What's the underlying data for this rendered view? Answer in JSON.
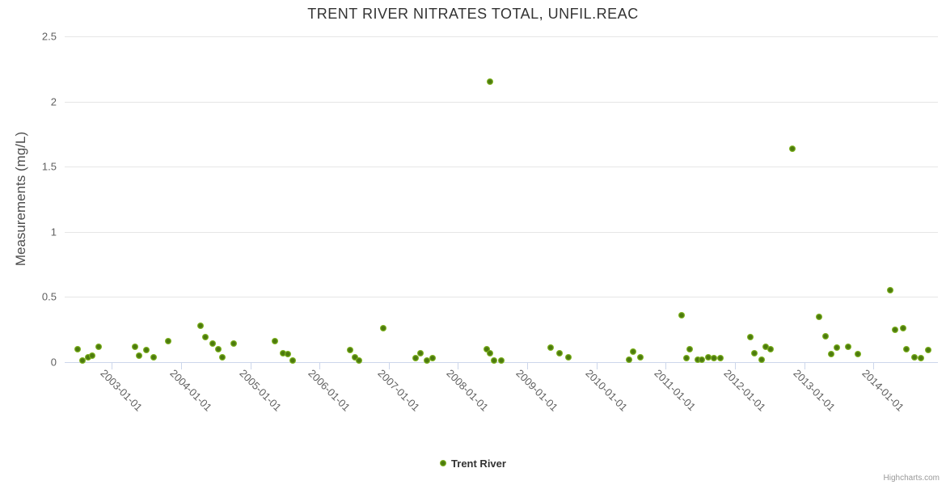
{
  "title": "TRENT RIVER NITRATES TOTAL, UNFIL.REAC",
  "legend": {
    "label": "Trent River",
    "marker_icon": "circle-marker-icon",
    "color": "#8bc42a"
  },
  "credits_label": "Highcharts.com",
  "colors": {
    "point_fill": "#8bc42a",
    "point_core": "#4c7a0e",
    "grid": "#e6e6e6",
    "axis_line": "#ccd6eb",
    "label_text": "#606060",
    "title_text": "#333333"
  },
  "chart_data": {
    "type": "scatter",
    "title": "TRENT RIVER NITRATES TOTAL, UNFIL.REAC",
    "xlabel": "",
    "ylabel": "Measurements (mg/L)",
    "ylim": [
      0,
      2.5
    ],
    "yticks": [
      0,
      0.5,
      1,
      1.5,
      2,
      2.5
    ],
    "xlim": [
      2002.32,
      2014.93
    ],
    "grid": true,
    "legend_position": "bottom-center",
    "xticks": [
      {
        "t": 2003,
        "label": "2003-01-01"
      },
      {
        "t": 2004,
        "label": "2004-01-01"
      },
      {
        "t": 2005,
        "label": "2005-01-01"
      },
      {
        "t": 2006,
        "label": "2006-01-01"
      },
      {
        "t": 2007,
        "label": "2007-01-01"
      },
      {
        "t": 2008,
        "label": "2008-01-01"
      },
      {
        "t": 2009,
        "label": "2009-01-01"
      },
      {
        "t": 2010,
        "label": "2010-01-01"
      },
      {
        "t": 2011,
        "label": "2011-01-01"
      },
      {
        "t": 2012,
        "label": "2012-01-01"
      },
      {
        "t": 2013,
        "label": "2013-01-01"
      },
      {
        "t": 2014,
        "label": "2014-01-01"
      }
    ],
    "series": [
      {
        "name": "Trent River",
        "color": "#8bc42a",
        "points": [
          [
            2002.51,
            0.1
          ],
          [
            2002.58,
            0.01
          ],
          [
            2002.66,
            0.04
          ],
          [
            2002.72,
            0.05
          ],
          [
            2002.81,
            0.12
          ],
          [
            2003.34,
            0.12
          ],
          [
            2003.4,
            0.05
          ],
          [
            2003.5,
            0.09
          ],
          [
            2003.61,
            0.04
          ],
          [
            2003.82,
            0.16
          ],
          [
            2004.28,
            0.28
          ],
          [
            2004.35,
            0.19
          ],
          [
            2004.46,
            0.14
          ],
          [
            2004.54,
            0.1
          ],
          [
            2004.6,
            0.04
          ],
          [
            2004.76,
            0.14
          ],
          [
            2005.36,
            0.16
          ],
          [
            2005.47,
            0.07
          ],
          [
            2005.54,
            0.06
          ],
          [
            2005.61,
            0.01
          ],
          [
            2006.44,
            0.09
          ],
          [
            2006.51,
            0.04
          ],
          [
            2006.57,
            0.01
          ],
          [
            2006.92,
            0.26
          ],
          [
            2007.39,
            0.03
          ],
          [
            2007.46,
            0.07
          ],
          [
            2007.55,
            0.01
          ],
          [
            2007.63,
            0.03
          ],
          [
            2008.41,
            0.1
          ],
          [
            2008.46,
            2.15
          ],
          [
            2008.46,
            0.07
          ],
          [
            2008.52,
            0.01
          ],
          [
            2008.62,
            0.01
          ],
          [
            2009.34,
            0.11
          ],
          [
            2009.46,
            0.07
          ],
          [
            2009.59,
            0.04
          ],
          [
            2010.47,
            0.02
          ],
          [
            2010.53,
            0.08
          ],
          [
            2010.63,
            0.04
          ],
          [
            2011.23,
            0.36
          ],
          [
            2011.3,
            0.03
          ],
          [
            2011.35,
            0.1
          ],
          [
            2011.46,
            0.02
          ],
          [
            2011.52,
            0.02
          ],
          [
            2011.61,
            0.04
          ],
          [
            2011.69,
            0.03
          ],
          [
            2011.79,
            0.03
          ],
          [
            2012.22,
            0.19
          ],
          [
            2012.28,
            0.07
          ],
          [
            2012.38,
            0.02
          ],
          [
            2012.44,
            0.12
          ],
          [
            2012.51,
            0.1
          ],
          [
            2012.83,
            1.64
          ],
          [
            2013.21,
            0.35
          ],
          [
            2013.31,
            0.2
          ],
          [
            2013.39,
            0.06
          ],
          [
            2013.47,
            0.11
          ],
          [
            2013.63,
            0.12
          ],
          [
            2013.77,
            0.06
          ],
          [
            2014.24,
            0.55
          ],
          [
            2014.31,
            0.25
          ],
          [
            2014.43,
            0.26
          ],
          [
            2014.48,
            0.1
          ],
          [
            2014.59,
            0.04
          ],
          [
            2014.69,
            0.03
          ],
          [
            2014.79,
            0.09
          ]
        ]
      }
    ]
  }
}
